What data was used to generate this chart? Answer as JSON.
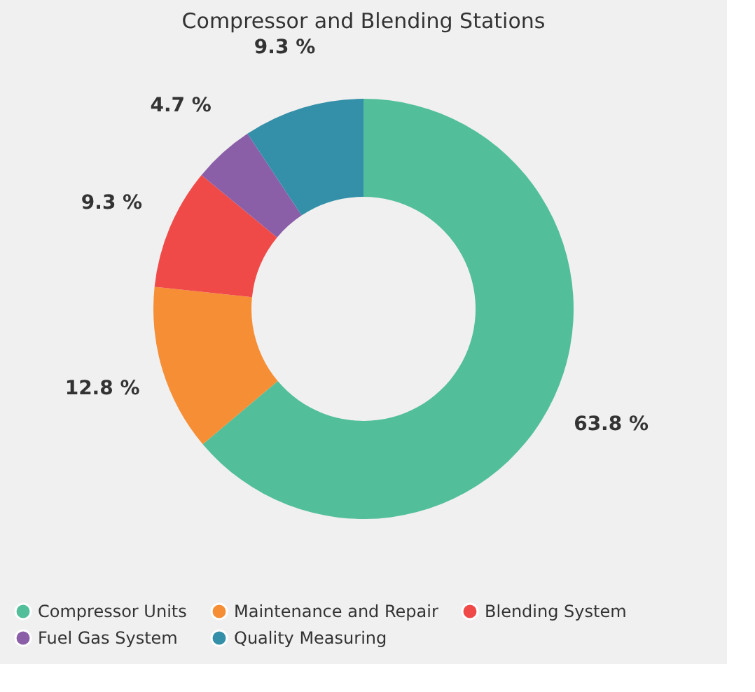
{
  "chart_data": {
    "type": "donut",
    "title": "Compressor and Blending Stations",
    "categories": [
      "Compressor Units",
      "Maintenance and Repair",
      "Blending System",
      "Fuel Gas System",
      "Quality Measuring"
    ],
    "values": [
      63.8,
      12.8,
      9.3,
      4.7,
      9.3
    ],
    "value_labels": [
      "63.8 %",
      "12.8 %",
      "9.3 %",
      "4.7 %",
      "9.3 %"
    ],
    "colors": [
      "#52bf9a",
      "#f58e35",
      "#f04a48",
      "#8a5fa8",
      "#3490a8"
    ],
    "legend": "bottom"
  }
}
